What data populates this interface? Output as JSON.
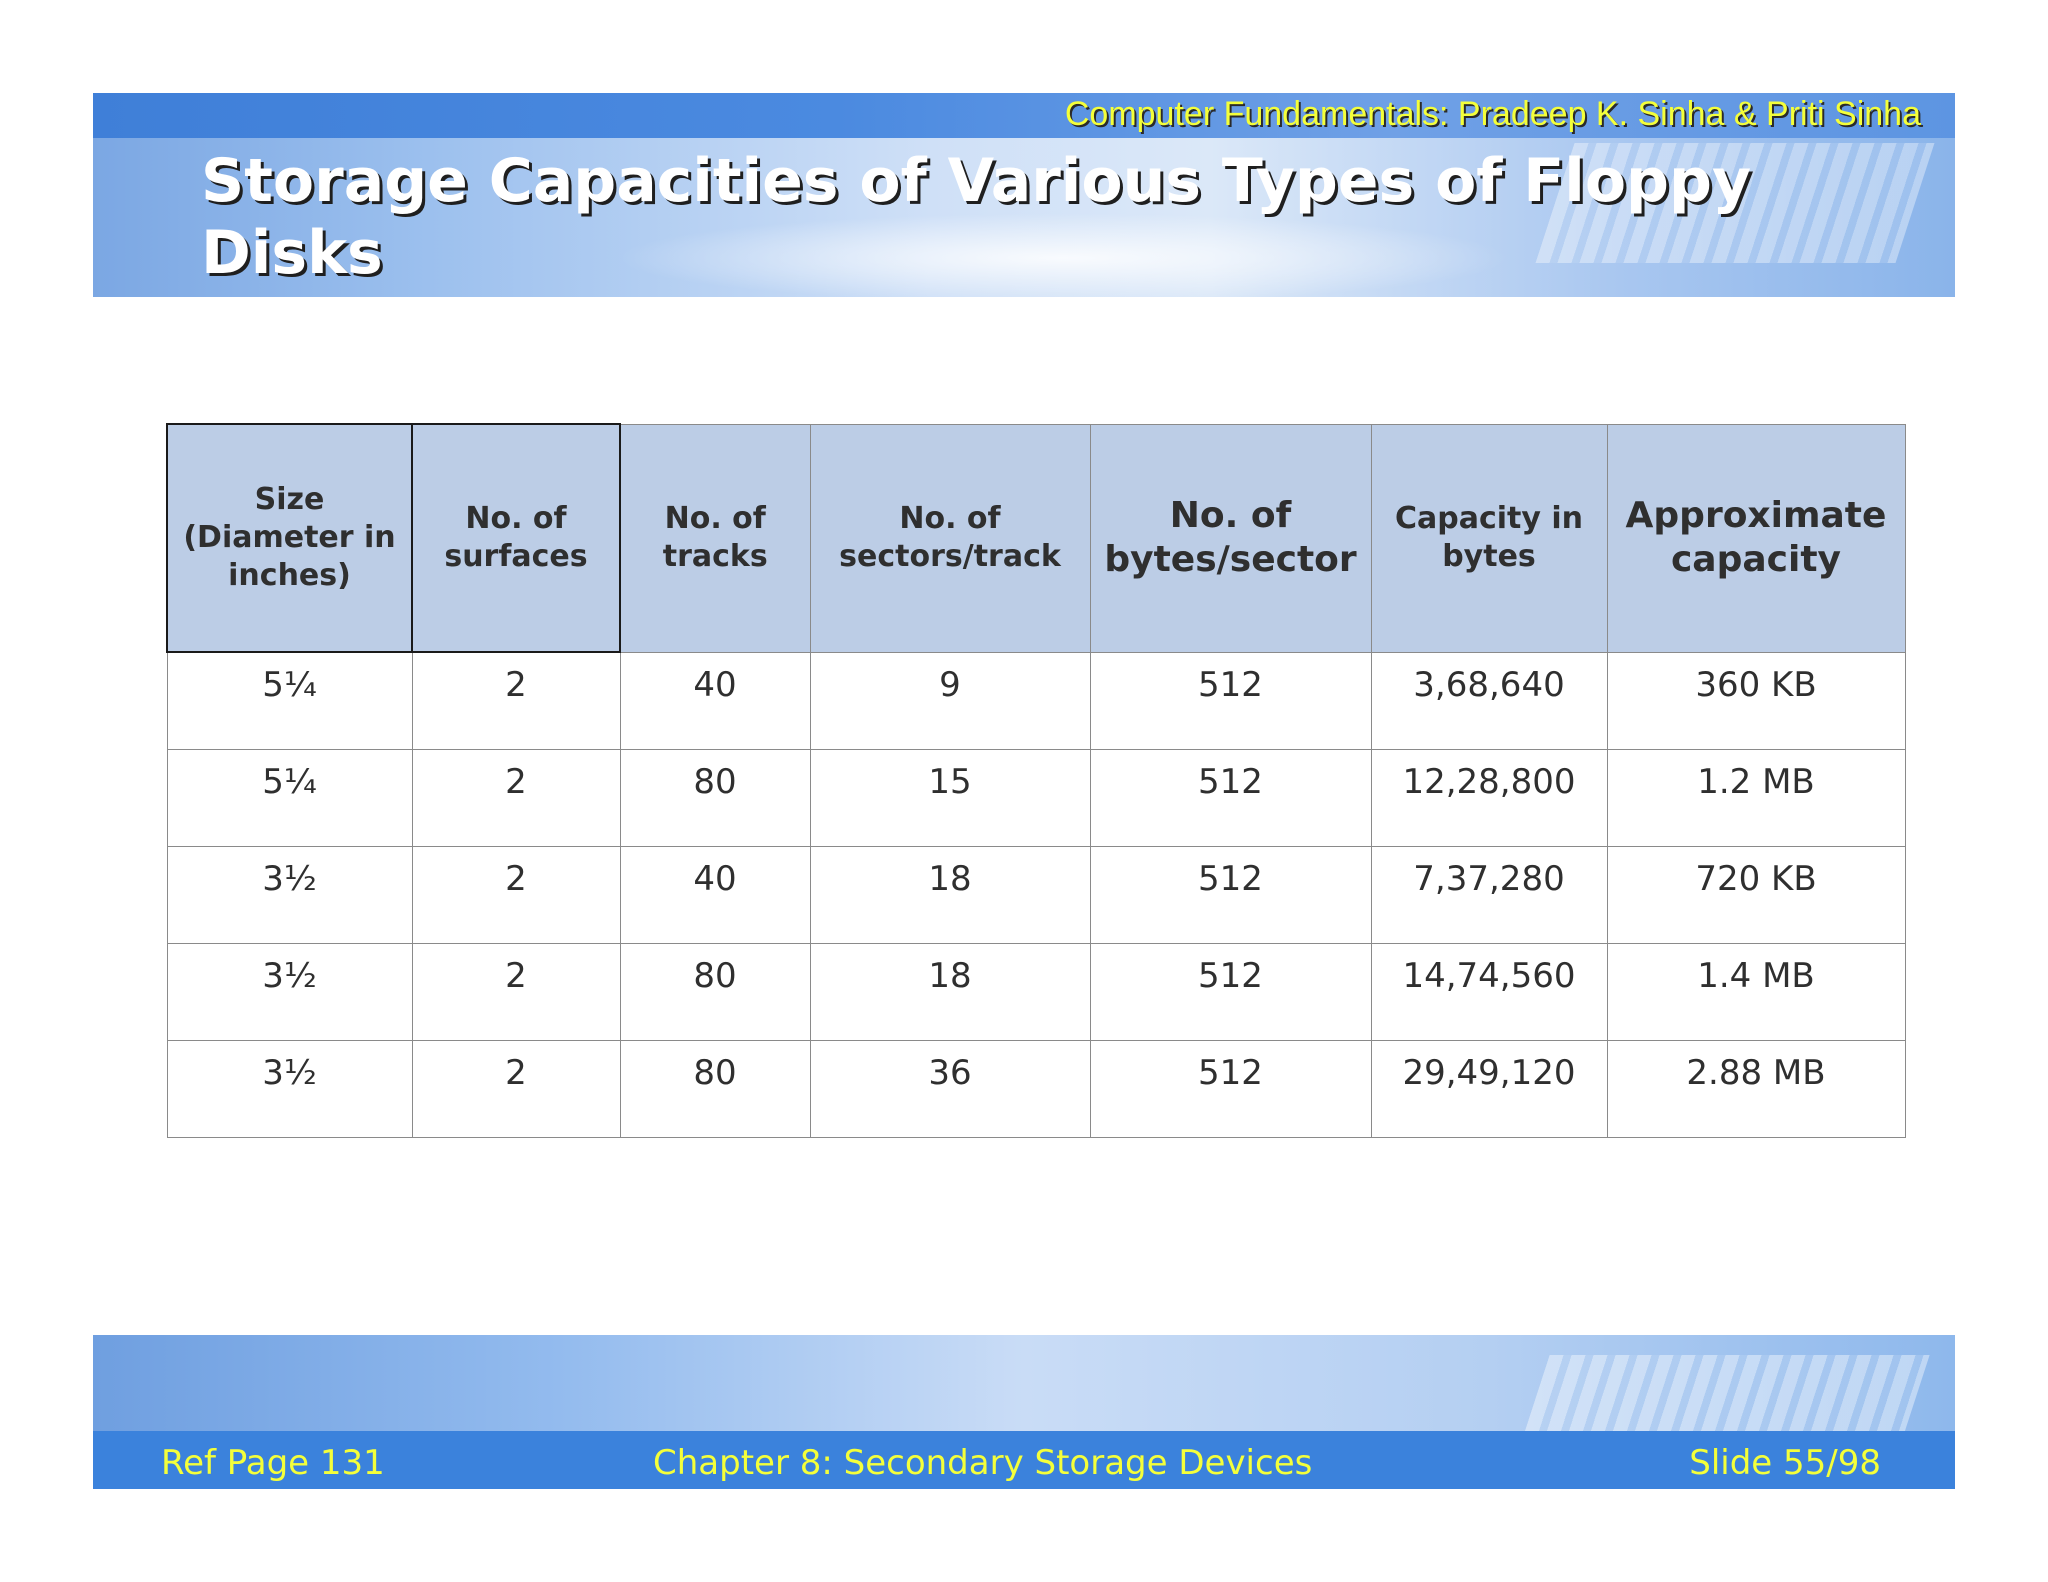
{
  "header": {
    "author": "Computer Fundamentals: Pradeep K. Sinha & Priti Sinha",
    "title": "Storage Capacities of Various Types of Floppy Disks"
  },
  "table": {
    "headers": [
      "Size (Diameter in inches)",
      "No. of surfaces",
      "No. of tracks",
      "No. of sectors/track",
      "No. of bytes/sector",
      "Capacity in bytes",
      "Approximate capacity"
    ],
    "rows": [
      [
        "5¼",
        "2",
        "40",
        "9",
        "512",
        "3,68,640",
        "360 KB"
      ],
      [
        "5¼",
        "2",
        "80",
        "15",
        "512",
        "12,28,800",
        "1.2 MB"
      ],
      [
        "3½",
        "2",
        "40",
        "18",
        "512",
        "7,37,280",
        "720 KB"
      ],
      [
        "3½",
        "2",
        "80",
        "18",
        "512",
        "14,74,560",
        "1.4 MB"
      ],
      [
        "3½",
        "2",
        "80",
        "36",
        "512",
        "29,49,120",
        "2.88 MB"
      ]
    ]
  },
  "footer": {
    "ref_page": "Ref Page 131",
    "chapter": "Chapter 8: Secondary Storage Devices",
    "slide": "Slide 55/98"
  },
  "colors": {
    "header_fill": "#bccde6",
    "banner_blue": "#3b82dc",
    "accent_yellow": "#f4ff3a"
  }
}
